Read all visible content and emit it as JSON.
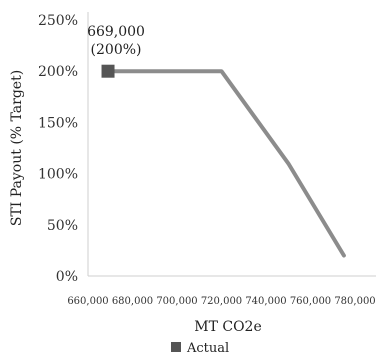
{
  "chart_data": {
    "type": "line",
    "title": "",
    "xlabel": "MT CO2e",
    "ylabel": "STI Payout (% Target)",
    "x_ticks": [
      "660,000",
      "680,000",
      "700,000",
      "720,000",
      "740,000",
      "760,000",
      "780,000"
    ],
    "x_tick_values": [
      660000,
      680000,
      700000,
      720000,
      740000,
      760000,
      780000
    ],
    "y_ticks": [
      "0%",
      "50%",
      "100%",
      "150%",
      "200%",
      "250%"
    ],
    "y_tick_values": [
      0,
      50,
      100,
      150,
      200,
      250
    ],
    "xlim": [
      660000,
      780000
    ],
    "ylim": [
      0,
      250
    ],
    "grid": false,
    "series": [
      {
        "name": "",
        "color": "#8c8c8c",
        "points": [
          {
            "x": 669000,
            "y": 200
          },
          {
            "x": 720000,
            "y": 200
          },
          {
            "x": 750000,
            "y": 110
          },
          {
            "x": 775000,
            "y": 20
          }
        ]
      }
    ],
    "actual": {
      "x": 669000,
      "y": 200,
      "color": "#555555",
      "label_line1": "669,000",
      "label_line2": "(200%)"
    },
    "legend": {
      "position": "bottom",
      "items": [
        {
          "label": "Actual",
          "color": "#555555",
          "marker": "square"
        }
      ]
    }
  }
}
